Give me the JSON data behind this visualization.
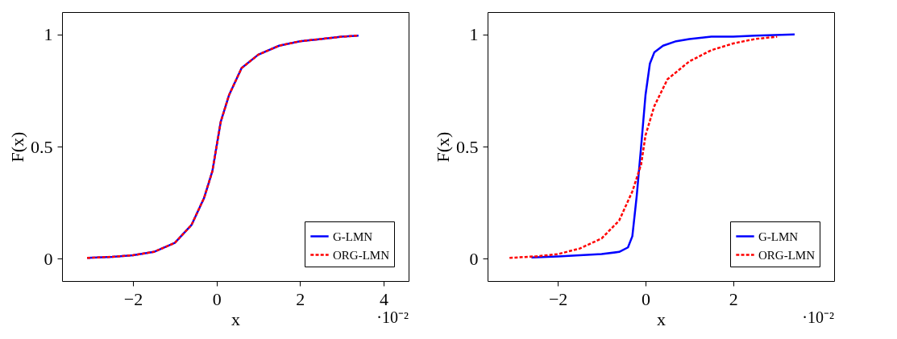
{
  "chart_data": [
    {
      "type": "line",
      "xlabel": "x",
      "ylabel": "F(x)",
      "xlim": [
        -3.7,
        4.6
      ],
      "ylim": [
        -0.1,
        1.1
      ],
      "xticks": [
        -2,
        0,
        2,
        4
      ],
      "yticks": [
        0,
        0.5,
        1
      ],
      "legend": "bottom right",
      "annotations": [
        "·10⁻²"
      ],
      "series": [
        {
          "name": "G-LMN",
          "color": "#0000ff",
          "line_style": "solid",
          "x": [
            -3.1,
            -2.5,
            -2,
            -1.5,
            -1,
            -0.6,
            -0.3,
            -0.1,
            0,
            0.1,
            0.3,
            0.6,
            1,
            1.5,
            2,
            2.5,
            3,
            3.4
          ],
          "values": [
            0.003,
            0.008,
            0.015,
            0.03,
            0.07,
            0.15,
            0.27,
            0.39,
            0.5,
            0.61,
            0.73,
            0.85,
            0.91,
            0.95,
            0.97,
            0.98,
            0.99,
            0.995
          ]
        },
        {
          "name": "ORG-LMN",
          "color": "#ff0000",
          "line_style": "dashed",
          "x": [
            -3.1,
            -2.5,
            -2,
            -1.5,
            -1,
            -0.6,
            -0.3,
            -0.1,
            0,
            0.1,
            0.3,
            0.6,
            1,
            1.5,
            2,
            2.5,
            3,
            3.4
          ],
          "values": [
            0.003,
            0.008,
            0.015,
            0.03,
            0.07,
            0.15,
            0.27,
            0.39,
            0.5,
            0.61,
            0.73,
            0.85,
            0.91,
            0.95,
            0.97,
            0.98,
            0.99,
            0.995
          ]
        }
      ]
    },
    {
      "type": "line",
      "xlabel": "x",
      "ylabel": "F(x)",
      "xlim": [
        -3.6,
        4.3
      ],
      "ylim": [
        -0.1,
        1.1
      ],
      "xticks": [
        -2,
        0,
        2
      ],
      "yticks": [
        0,
        0.5,
        1
      ],
      "legend": "bottom right",
      "annotations": [
        "·10⁻²"
      ],
      "series": [
        {
          "name": "G-LMN",
          "color": "#0000ff",
          "line_style": "solid",
          "x": [
            -2.6,
            -2,
            -1.5,
            -1,
            -0.6,
            -0.4,
            -0.3,
            -0.2,
            -0.1,
            0,
            0.1,
            0.2,
            0.4,
            0.7,
            1,
            1.5,
            2,
            2.5,
            3.4
          ],
          "values": [
            0.005,
            0.01,
            0.015,
            0.02,
            0.03,
            0.05,
            0.1,
            0.28,
            0.5,
            0.73,
            0.87,
            0.92,
            0.95,
            0.97,
            0.98,
            0.99,
            0.99,
            0.995,
            1.0
          ]
        },
        {
          "name": "ORG-LMN",
          "color": "#ff0000",
          "line_style": "dashed",
          "x": [
            -3.1,
            -2.5,
            -2,
            -1.5,
            -1,
            -0.6,
            -0.3,
            -0.1,
            0,
            0.2,
            0.5,
            1,
            1.5,
            2,
            2.5,
            3
          ],
          "values": [
            0.003,
            0.01,
            0.02,
            0.045,
            0.09,
            0.17,
            0.3,
            0.42,
            0.55,
            0.68,
            0.8,
            0.88,
            0.93,
            0.96,
            0.98,
            0.99
          ]
        }
      ]
    }
  ]
}
